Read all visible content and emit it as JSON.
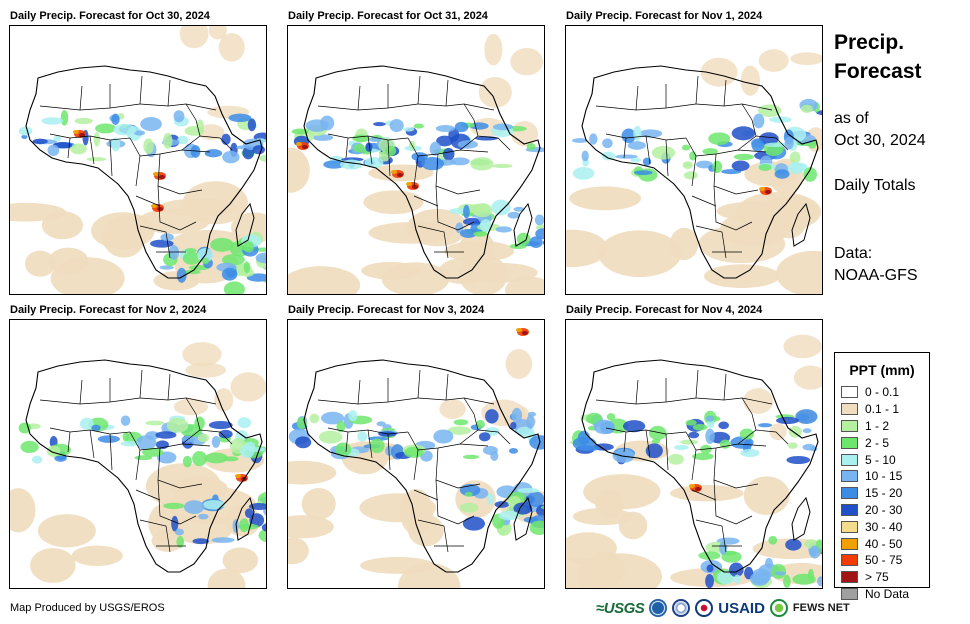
{
  "panels": [
    {
      "title": "Daily Precip. Forecast for Oct 30, 2024"
    },
    {
      "title": "Daily Precip. Forecast for Oct 31, 2024"
    },
    {
      "title": "Daily Precip. Forecast for Nov 1, 2024"
    },
    {
      "title": "Daily Precip. Forecast for Nov 2, 2024"
    },
    {
      "title": "Daily Precip. Forecast for Nov 3, 2024"
    },
    {
      "title": "Daily Precip. Forecast for Nov 4, 2024"
    }
  ],
  "side": {
    "title_line1": "Precip.",
    "title_line2": "Forecast",
    "asof_line1": "as of",
    "asof_line2": "Oct 30, 2024",
    "totals": "Daily Totals",
    "data_line1": "Data:",
    "data_line2": "NOAA-GFS"
  },
  "legend": {
    "title": "PPT (mm)",
    "items": [
      {
        "label": "0 - 0.1",
        "color": "#ffffff"
      },
      {
        "label": "0.1 - 1",
        "color": "#f0dcbe"
      },
      {
        "label": "1 - 2",
        "color": "#b4f0a0"
      },
      {
        "label": "2 - 5",
        "color": "#6ee66e"
      },
      {
        "label": "5 - 10",
        "color": "#aaf0f0"
      },
      {
        "label": "10 - 15",
        "color": "#78b4f0"
      },
      {
        "label": "15 - 20",
        "color": "#3c8ce6"
      },
      {
        "label": "20 - 30",
        "color": "#1e50c8"
      },
      {
        "label": "30 - 40",
        "color": "#f5dc8c"
      },
      {
        "label": "40 - 50",
        "color": "#f0a000"
      },
      {
        "label": "50 - 75",
        "color": "#f03c00"
      },
      {
        "label": "> 75",
        "color": "#a01414"
      },
      {
        "label": "No Data",
        "color": "#a0a0a0"
      }
    ]
  },
  "footer": {
    "credit": "Map Produced by USGS/EROS",
    "logos": {
      "usgs": "≈USGS",
      "usaid": "USAID",
      "fews": "FEWS NET"
    }
  }
}
